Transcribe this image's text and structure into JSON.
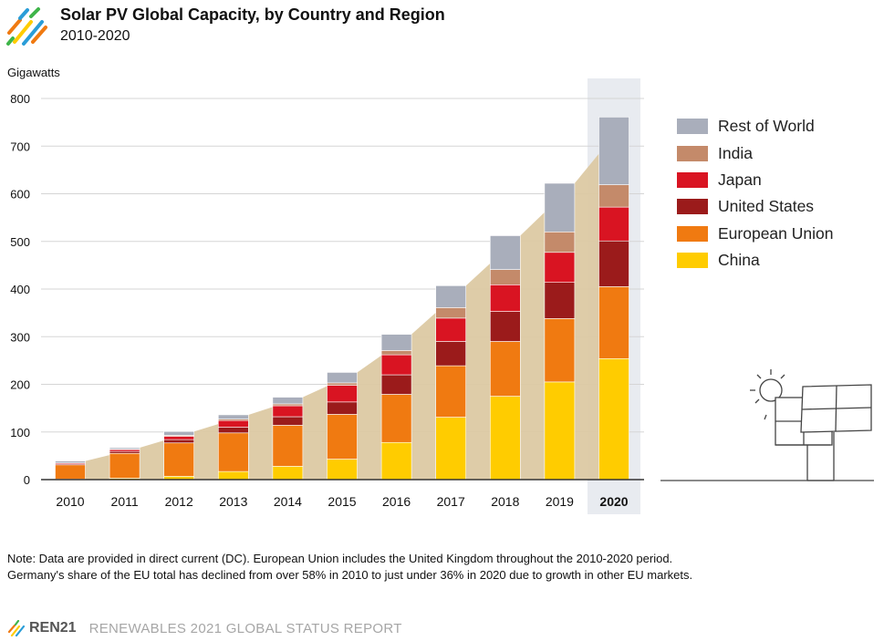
{
  "header": {
    "title": "Solar PV Global Capacity, by Country and Region",
    "subtitle": "2010-2020"
  },
  "footer": {
    "brand": "REN21",
    "report": "RENEWABLES 2021 GLOBAL STATUS REPORT"
  },
  "note": {
    "line1": "Note: Data are provided in direct current (DC). European Union includes the United Kingdom throughout the 2010-2020 period.",
    "line2": "Germany's share of the EU total has declined from over 58% in 2010 to just under 36% in 2020 due to growth in other EU markets."
  },
  "chart_data": {
    "type": "bar",
    "stacked": true,
    "title": "Solar PV Global Capacity, by Country and Region",
    "subtitle": "2010-2020",
    "ylabel": "Gigawatts",
    "xlabel": "",
    "ylim": [
      0,
      800
    ],
    "yticks": [
      0,
      100,
      200,
      300,
      400,
      500,
      600,
      700,
      800
    ],
    "grid": true,
    "legend_position": "right",
    "highlighted_category": "2020",
    "categories": [
      "2010",
      "2011",
      "2012",
      "2013",
      "2014",
      "2015",
      "2016",
      "2017",
      "2018",
      "2019",
      "2020"
    ],
    "series": [
      {
        "name": "China",
        "color": "#FFCC00",
        "values": [
          1,
          3,
          7,
          17,
          28,
          43,
          78,
          131,
          175,
          205,
          254
        ]
      },
      {
        "name": "European Union",
        "color": "#F07A11",
        "values": [
          30,
          52,
          70,
          81,
          86,
          94,
          101,
          108,
          115,
          133,
          151
        ]
      },
      {
        "name": "United States",
        "color": "#9B1B1B",
        "values": [
          2,
          4,
          7,
          12,
          18,
          26,
          41,
          51,
          63,
          76,
          96
        ]
      },
      {
        "name": "Japan",
        "color": "#D91422",
        "values": [
          2,
          4,
          7,
          14,
          23,
          35,
          42,
          49,
          56,
          63,
          71
        ]
      },
      {
        "name": "India",
        "color": "#C48A6A",
        "values": [
          0,
          1,
          2,
          3,
          4,
          5,
          9,
          22,
          32,
          43,
          47
        ]
      },
      {
        "name": "Rest of World",
        "color": "#A9AEBB",
        "values": [
          4,
          3,
          8,
          9,
          14,
          22,
          34,
          46,
          71,
          102,
          142
        ]
      }
    ],
    "legend_order": [
      "Rest of World",
      "India",
      "Japan",
      "United States",
      "European Union",
      "China"
    ]
  }
}
